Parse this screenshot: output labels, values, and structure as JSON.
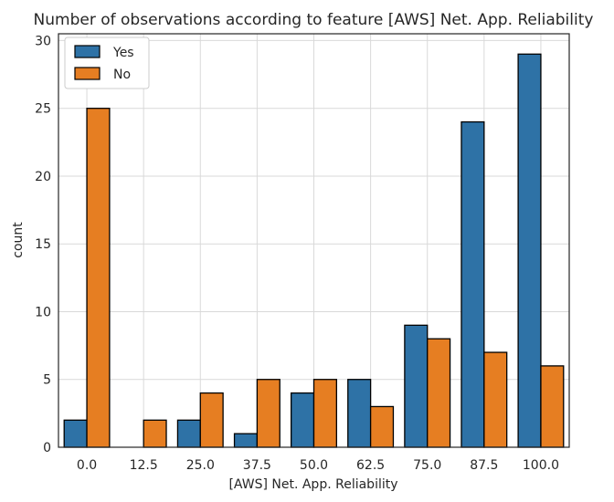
{
  "chart_data": {
    "type": "bar",
    "title": "Number of observations according to feature [AWS] Net. App. Reliability",
    "xlabel": "[AWS] Net. App. Reliability",
    "ylabel": "count",
    "categories": [
      "0.0",
      "12.5",
      "25.0",
      "37.5",
      "50.0",
      "62.5",
      "75.0",
      "87.5",
      "100.0"
    ],
    "series": [
      {
        "name": "Yes",
        "color": "#2e72a6",
        "values": [
          2,
          0,
          2,
          1,
          4,
          5,
          9,
          24,
          29
        ]
      },
      {
        "name": "No",
        "color": "#e67e22",
        "values": [
          25,
          2,
          4,
          5,
          5,
          3,
          8,
          7,
          6
        ]
      }
    ],
    "ylim": [
      0,
      30.5
    ],
    "yticks": [
      0,
      5,
      10,
      15,
      20,
      25,
      30
    ],
    "grid": true,
    "legend_position": "top-left"
  }
}
